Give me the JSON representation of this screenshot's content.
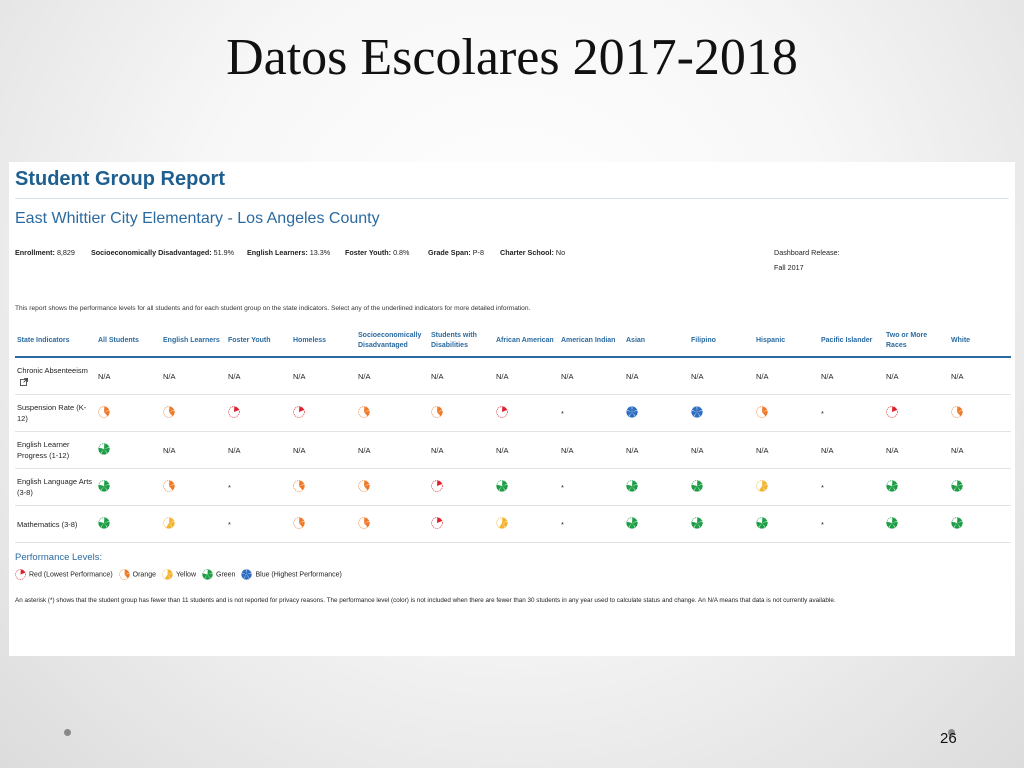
{
  "slide": {
    "title": "Datos Escolares 2017-2018",
    "page_number": "26"
  },
  "report": {
    "title": "Student Group Report",
    "school": "East Whittier City Elementary - Los Angeles County",
    "info": {
      "enrollment_label": "Enrollment:",
      "enrollment": "8,829",
      "sed_label": "Socioeconomically Disadvantaged:",
      "sed": "51.9%",
      "el_label": "English Learners:",
      "el": "13.3%",
      "fy_label": "Foster Youth:",
      "fy": "0.8%",
      "grade_label": "Grade Span:",
      "grade": "P-8",
      "charter_label": "Charter School:",
      "charter": "No",
      "release_label": "Dashboard Release:",
      "release": "Fall 2017"
    },
    "description": "This report shows the performance levels for all students and for each student group on the state indicators. Select any of the underlined indicators for more detailed information.",
    "columns": [
      "State Indicators",
      "All Students",
      "English Learners",
      "Foster Youth",
      "Homeless",
      "Socioeconomically Disadvantaged",
      "Students with Disabilities",
      "African American",
      "American Indian",
      "Asian",
      "Filipino",
      "Hispanic",
      "Pacific Islander",
      "Two or More Races",
      "White"
    ],
    "rows": [
      {
        "indicator": "Chronic Absenteeism",
        "external_link": true,
        "cells": [
          "N/A",
          "N/A",
          "N/A",
          "N/A",
          "N/A",
          "N/A",
          "N/A",
          "N/A",
          "N/A",
          "N/A",
          "N/A",
          "N/A",
          "N/A",
          "N/A"
        ]
      },
      {
        "indicator": "Suspension Rate (K-12)",
        "cells": [
          "orange",
          "orange",
          "red",
          "red",
          "orange",
          "orange",
          "red",
          "*",
          "blue",
          "blue",
          "orange",
          "*",
          "red",
          "orange"
        ]
      },
      {
        "indicator": "English Learner Progress (1-12)",
        "cells": [
          "green",
          "N/A",
          "N/A",
          "N/A",
          "N/A",
          "N/A",
          "N/A",
          "N/A",
          "N/A",
          "N/A",
          "N/A",
          "N/A",
          "N/A",
          "N/A"
        ]
      },
      {
        "indicator": "English Language Arts (3-8)",
        "cells": [
          "green",
          "orange",
          "*",
          "orange",
          "orange",
          "red",
          "green",
          "*",
          "green",
          "green",
          "yellow",
          "*",
          "green",
          "green"
        ]
      },
      {
        "indicator": "Mathematics (3-8)",
        "cells": [
          "green",
          "yellow",
          "*",
          "orange",
          "orange",
          "red",
          "yellow",
          "*",
          "green",
          "green",
          "green",
          "*",
          "green",
          "green"
        ]
      }
    ],
    "legend": {
      "title": "Performance Levels:",
      "items": [
        {
          "level": "red",
          "label": "Red (Lowest Performance)"
        },
        {
          "level": "orange",
          "label": "Orange"
        },
        {
          "level": "yellow",
          "label": "Yellow"
        },
        {
          "level": "green",
          "label": "Green"
        },
        {
          "level": "blue",
          "label": "Blue (Highest Performance)"
        }
      ]
    },
    "note": "An asterisk (*) shows that the student group has fewer than 11 students and is not reported for privacy reasons. The performance level (color) is not included when there are fewer than 30 students in any year used to calculate status and change. An N/A means that data is not currently available."
  },
  "colors": {
    "red": "#e0202a",
    "orange": "#f07a2a",
    "yellow": "#f2b431",
    "green": "#1f9e48",
    "blue": "#2f6fc2",
    "header": "#2a6aa0"
  }
}
